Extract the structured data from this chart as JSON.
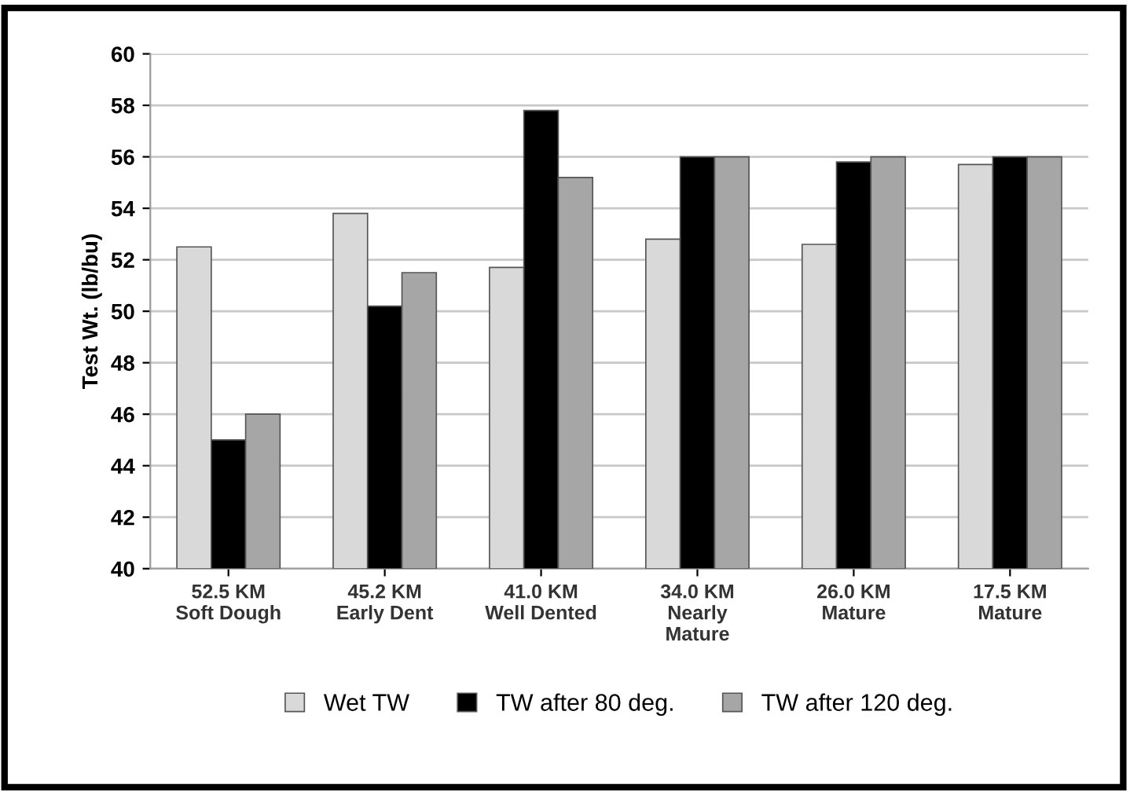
{
  "chart_data": {
    "type": "bar",
    "ylabel": "Test Wt. (lb/bu)",
    "categories": [
      "52.5 KM\nSoft Dough",
      "45.2 KM\nEarly Dent",
      "41.0 KM\nWell Dented",
      "34.0 KM\nNearly\nMature",
      "26.0 KM\nMature",
      "17.5 KM\nMature"
    ],
    "series": [
      {
        "name": "Wet TW",
        "color": "#d9d9d9",
        "values": [
          52.5,
          53.8,
          51.7,
          52.8,
          52.6,
          55.7
        ]
      },
      {
        "name": "TW after 80 deg.",
        "color": "#000000",
        "values": [
          45.0,
          50.2,
          57.8,
          56.0,
          55.8,
          56.0
        ]
      },
      {
        "name": "TW after 120 deg.",
        "color": "#a6a6a6",
        "values": [
          46.0,
          51.5,
          55.2,
          56.0,
          56.0,
          56.0
        ]
      }
    ],
    "ylim": [
      40,
      60
    ],
    "yticks": [
      40,
      42,
      44,
      46,
      48,
      50,
      52,
      54,
      56,
      58,
      60
    ],
    "grid": "y",
    "legend": "bottom"
  }
}
